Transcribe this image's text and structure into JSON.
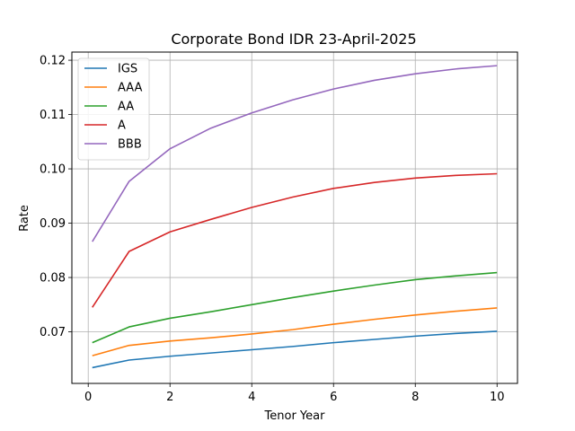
{
  "chart_data": {
    "type": "line",
    "title": "Corporate Bond IDR 23-April-2025",
    "xlabel": "Tenor Year",
    "ylabel": "Rate",
    "xlim": [
      -0.4,
      10.5
    ],
    "ylim": [
      0.0605,
      0.1215
    ],
    "xticks": [
      0,
      2,
      4,
      6,
      8,
      10
    ],
    "yticks": [
      0.07,
      0.08,
      0.09,
      0.1,
      0.11,
      0.12
    ],
    "xtick_labels": [
      "0",
      "2",
      "4",
      "6",
      "8",
      "10"
    ],
    "ytick_labels": [
      "0.07",
      "0.08",
      "0.09",
      "0.10",
      "0.11",
      "0.12"
    ],
    "grid": true,
    "legend_position": "upper-left",
    "x": [
      0.1,
      1,
      2,
      3,
      4,
      5,
      6,
      7,
      8,
      9,
      10
    ],
    "series": [
      {
        "name": "IGS",
        "color": "#1f77b4",
        "values": [
          0.0634,
          0.0648,
          0.0655,
          0.0661,
          0.0667,
          0.0673,
          0.068,
          0.0686,
          0.0692,
          0.0697,
          0.0701
        ]
      },
      {
        "name": "AAA",
        "color": "#ff7f0e",
        "values": [
          0.0656,
          0.0675,
          0.0683,
          0.0689,
          0.0696,
          0.0704,
          0.0714,
          0.0723,
          0.0731,
          0.0738,
          0.0744
        ]
      },
      {
        "name": "AA",
        "color": "#2ca02c",
        "values": [
          0.068,
          0.0709,
          0.0725,
          0.0737,
          0.075,
          0.0763,
          0.0775,
          0.0786,
          0.0796,
          0.0803,
          0.0809
        ]
      },
      {
        "name": "A",
        "color": "#d62728",
        "values": [
          0.0745,
          0.0848,
          0.0884,
          0.0907,
          0.0929,
          0.0948,
          0.0964,
          0.0975,
          0.0983,
          0.0988,
          0.0991
        ]
      },
      {
        "name": "BBB",
        "color": "#9467bd",
        "values": [
          0.0866,
          0.0977,
          0.1037,
          0.1075,
          0.1103,
          0.1127,
          0.1147,
          0.1163,
          0.1175,
          0.1184,
          0.119
        ]
      }
    ]
  }
}
